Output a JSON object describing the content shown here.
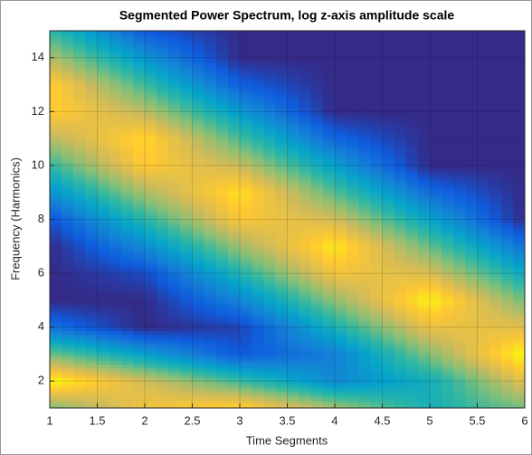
{
  "chart_data": {
    "type": "contour",
    "title": "Segmented Power Spectrum, log z-axis amplitude scale",
    "xlabel": "Time Segments",
    "ylabel": "Frequency (Harmonics)",
    "x": [
      1,
      2,
      3,
      4,
      5,
      6
    ],
    "y": [
      1,
      2,
      3,
      4,
      5,
      6,
      7,
      8,
      9,
      10,
      11,
      12,
      13,
      14,
      15
    ],
    "z": [
      [
        0.6,
        0.84,
        0.92,
        0.68,
        0.44,
        0.6
      ],
      [
        1,
        0.76,
        0.52,
        0.28,
        0.42,
        0.8
      ],
      [
        0.6,
        0.36,
        0.12,
        0.24,
        0.62,
        1
      ],
      [
        0.2,
        0,
        0.06,
        0.44,
        0.82,
        0.8
      ],
      [
        0,
        0,
        0.26,
        0.64,
        0.98,
        0.6
      ],
      [
        0,
        0.08,
        0.46,
        0.84,
        0.78,
        0.4
      ],
      [
        0,
        0.28,
        0.66,
        0.96,
        0.58,
        0.2
      ],
      [
        0.1,
        0.48,
        0.86,
        0.76,
        0.38,
        0
      ],
      [
        0.3,
        0.68,
        0.94,
        0.56,
        0.18,
        0
      ],
      [
        0.5,
        0.88,
        0.74,
        0.36,
        0,
        0
      ],
      [
        0.7,
        0.92,
        0.54,
        0.16,
        0,
        0
      ],
      [
        0.9,
        0.72,
        0.34,
        0,
        0,
        0
      ],
      [
        0.9,
        0.52,
        0.14,
        0,
        0,
        0
      ],
      [
        0.7,
        0.32,
        0,
        0,
        0,
        0
      ],
      [
        0.5,
        0.12,
        0,
        0,
        0,
        0
      ]
    ],
    "zlim": [
      0,
      1
    ],
    "colormap": [
      "#352a87",
      "#0f5cdd",
      "#1481d6",
      "#06a4ca",
      "#2eb7a4",
      "#87bf77",
      "#d1bb59",
      "#fec832",
      "#f9fb0e"
    ],
    "xlim": [
      1,
      6
    ],
    "ylim": [
      1,
      15
    ],
    "xticks": [
      1,
      1.5,
      2,
      2.5,
      3,
      3.5,
      4,
      4.5,
      5,
      5.5,
      6
    ],
    "yticks": [
      2,
      4,
      6,
      8,
      10,
      12,
      14
    ],
    "grid": true
  }
}
